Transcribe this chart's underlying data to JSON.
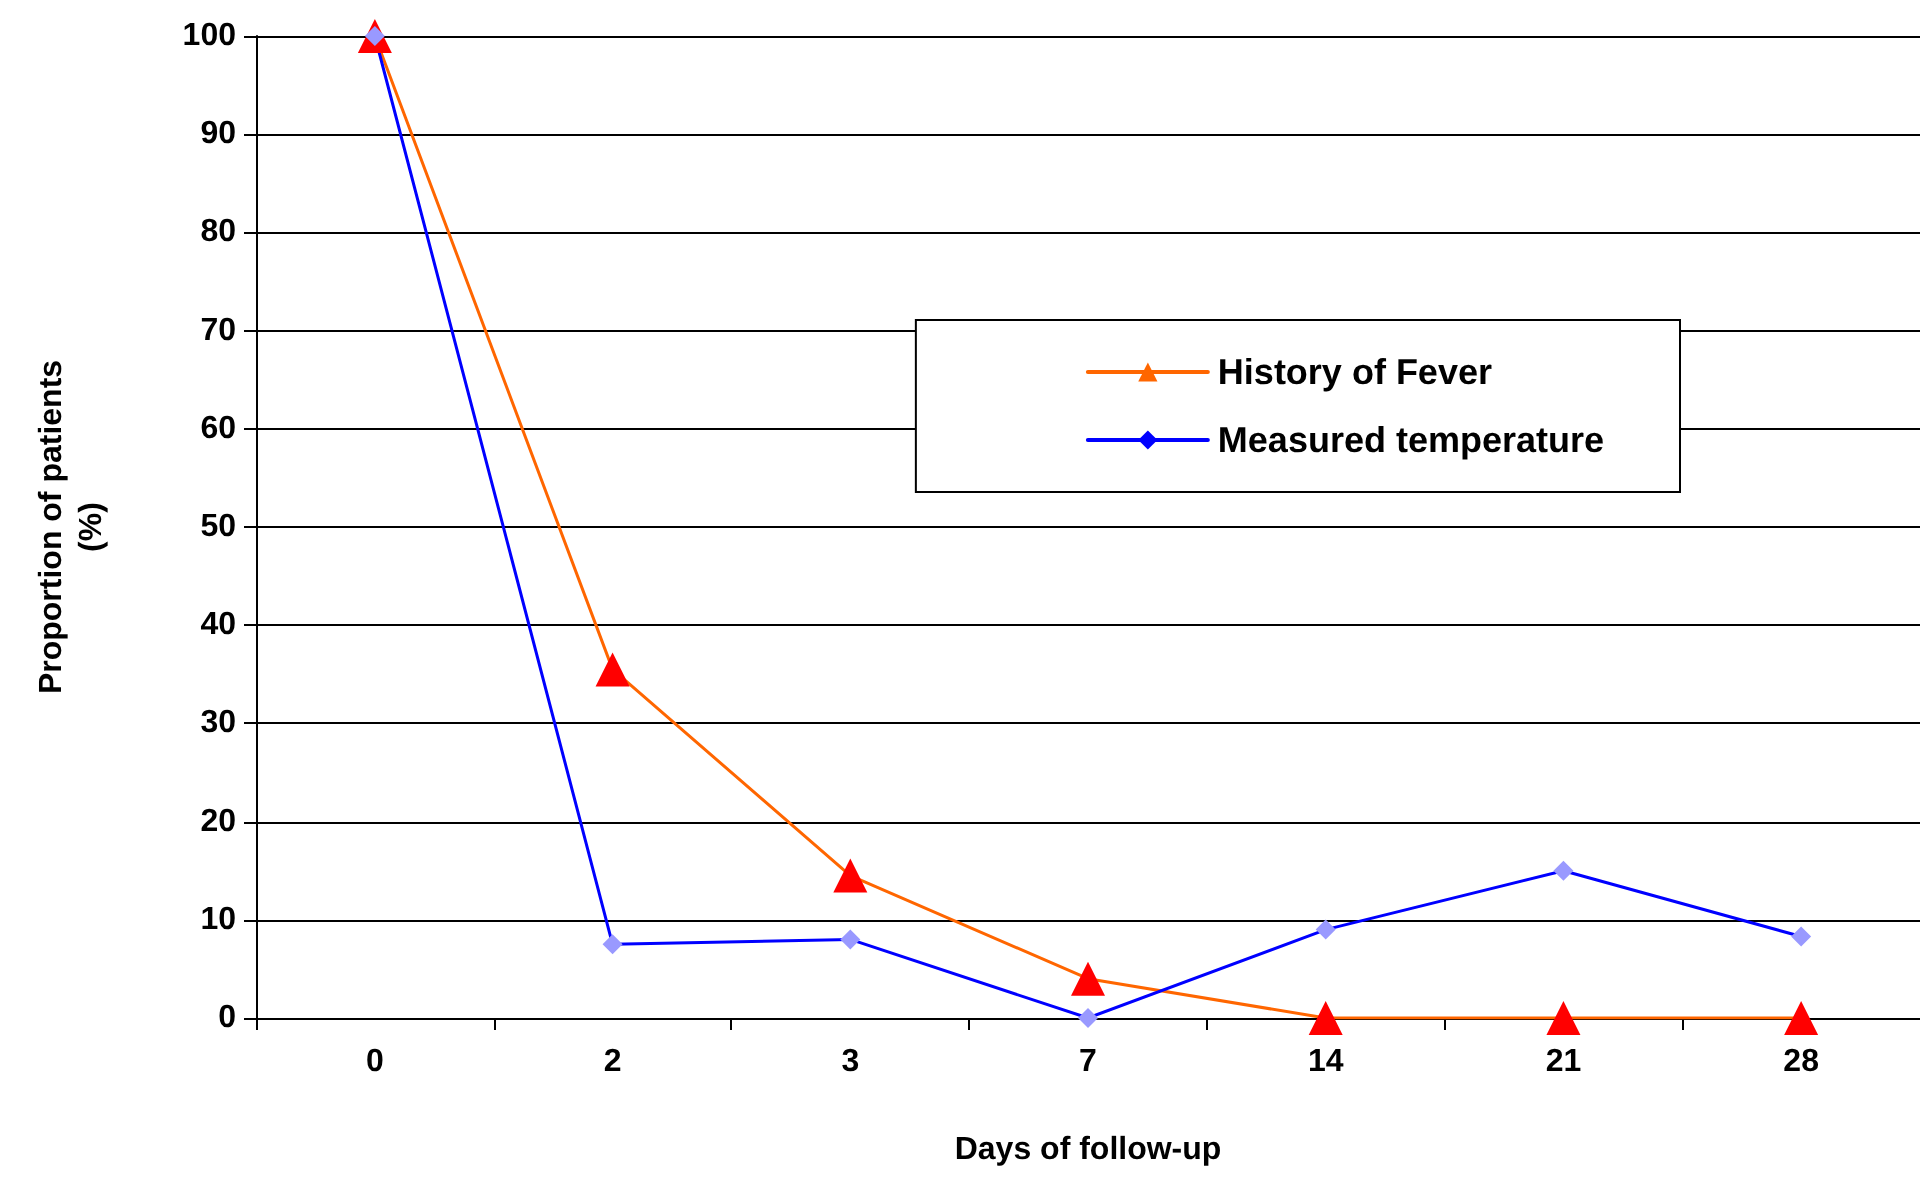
{
  "chart_data": {
    "type": "line",
    "xlabel": "Days of follow-up",
    "ylabel": "Proportion of patients\n(%)",
    "categories": [
      "0",
      "2",
      "3",
      "7",
      "14",
      "21",
      "28"
    ],
    "series": [
      {
        "name": "History of Fever",
        "color": "#ff6600",
        "marker": "triangle",
        "colors": [
          "#ff0000",
          "#ff0000",
          "#ff0000",
          "#ff0000",
          "#ff0000",
          "#ff0000",
          "#ff0000"
        ],
        "values": [
          100,
          35.5,
          14.5,
          4,
          0,
          0,
          0
        ]
      },
      {
        "name": "Measured temperature",
        "color": "#0000ff",
        "marker": "diamond",
        "colors": [
          "#9999ff",
          "#9999ff",
          "#9999ff",
          "#9999ff",
          "#9999ff",
          "#9999ff",
          "#9999ff"
        ],
        "values": [
          100,
          7.5,
          8,
          0,
          9,
          15,
          8.3
        ]
      }
    ],
    "ylim": [
      0,
      100
    ],
    "yticks": [
      0,
      10,
      20,
      30,
      40,
      50,
      60,
      70,
      80,
      90,
      100
    ],
    "grid": "y",
    "legend": "right"
  }
}
